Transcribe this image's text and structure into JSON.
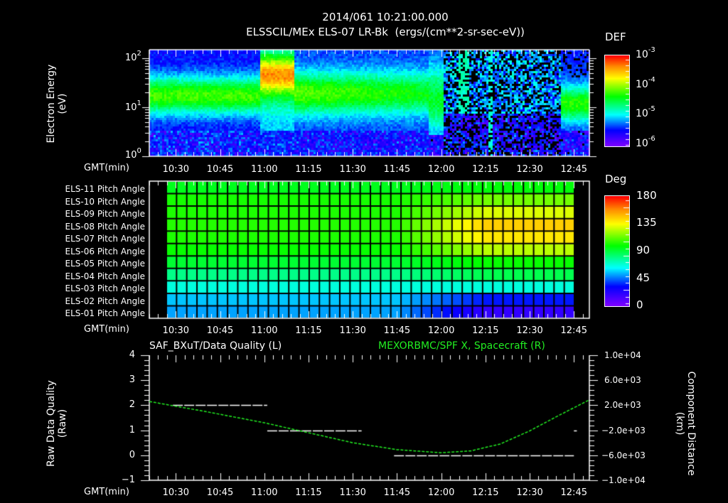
{
  "header": {
    "datetime": "2014/061 10:21:00.000",
    "subtitle": "ELSSCIL/MEx ELS-07 LR-Bk  (ergs/(cm**2-sr-sec-eV))"
  },
  "time_axis": {
    "label": "GMT(min)",
    "ticks": [
      "10:30",
      "10:45",
      "11:00",
      "11:15",
      "11:30",
      "11:45",
      "12:00",
      "12:15",
      "12:30",
      "12:45"
    ]
  },
  "chart_data": [
    {
      "type": "heatmap",
      "title": "ELSSCIL/MEx ELS-07 LR-Bk (ergs/(cm**2-sr-sec-eV))",
      "xlabel": "GMT(min)",
      "ylabel": "Electron Energy (eV)",
      "yscale": "log",
      "ylim": [
        1,
        150
      ],
      "y_ticks": [
        "10^0",
        "10^1",
        "10^2"
      ],
      "x_range": [
        "10:21",
        "12:50"
      ],
      "colorbar": {
        "label": "DEF",
        "scale": "log",
        "ticks": [
          "10^-6",
          "10^-5",
          "10^-4",
          "10^-3"
        ]
      },
      "features": [
        {
          "time": "10:21-10:58",
          "description": "green band ~15-40 eV, noisy purple below 4 eV"
        },
        {
          "time": "10:58-11:10",
          "description": "yellow/orange intensity peak ~50-100 eV"
        },
        {
          "time": "11:10-11:55",
          "description": "green band ~15-60 eV fading"
        },
        {
          "time": "11:55-12:00",
          "description": "cyan extension down to ~4 eV"
        },
        {
          "time": "12:00-12:40",
          "description": "sparse blue/purple with black gaps, vertical streaks"
        },
        {
          "time": "12:40-12:50",
          "description": "green block ~5-30 eV"
        }
      ]
    },
    {
      "type": "heatmap",
      "title": "Pitch Angle",
      "xlabel": "GMT(min)",
      "rows": [
        "ELS-11 Pitch Angle",
        "ELS-10 Pitch Angle",
        "ELS-09 Pitch Angle",
        "ELS-08 Pitch Angle",
        "ELS-07 Pitch Angle",
        "ELS-06 Pitch Angle",
        "ELS-05 Pitch Angle",
        "ELS-04 Pitch Angle",
        "ELS-03 Pitch Angle",
        "ELS-02 Pitch Angle",
        "ELS-01 Pitch Angle"
      ],
      "colorbar": {
        "label": "Deg",
        "ticks": [
          0,
          45,
          90,
          135,
          180
        ]
      },
      "start_values_deg": [
        95,
        102,
        103,
        104,
        103,
        100,
        92,
        80,
        68,
        56,
        52
      ],
      "end_values_deg": [
        98,
        115,
        130,
        145,
        140,
        125,
        100,
        88,
        68,
        35,
        20
      ],
      "transition_time": "12:10"
    },
    {
      "type": "line",
      "title_left": "SAF_BXuT/Data Quality (L)",
      "title_right": "MEXORBMC/SPF X, Spacecraft (R)",
      "xlabel": "GMT(min)",
      "ylabel_left": "Raw Data Quality (Raw)",
      "ylabel_right": "Component Distance (km)",
      "ylim_left": [
        -1,
        4
      ],
      "left_ticks": [
        "4",
        "3",
        "2",
        "1",
        "0",
        "-1"
      ],
      "ylim_right": [
        -10000,
        10000
      ],
      "right_ticks": [
        "1.0e+04",
        "6.0e+03",
        "2.0e+03",
        "-2.0e+03",
        "-6.0e+03",
        "-1.0e+04"
      ],
      "series": [
        {
          "name": "Data Quality",
          "axis": "left",
          "color": "#ffffff",
          "segments": [
            {
              "x": [
                "10:29",
                "11:01"
              ],
              "y": 2
            },
            {
              "x": [
                "11:01",
                "11:33"
              ],
              "y": 1
            },
            {
              "x": [
                "11:44",
                "12:45"
              ],
              "y": 0
            },
            {
              "x": [
                "12:45",
                "12:46"
              ],
              "y": 1
            }
          ]
        },
        {
          "name": "SPF X Spacecraft",
          "axis": "right",
          "color": "#22ee22",
          "x": [
            "10:21",
            "10:40",
            "11:00",
            "11:15",
            "11:30",
            "11:45",
            "12:00",
            "12:10",
            "12:20",
            "12:30",
            "12:40",
            "12:50"
          ],
          "y": [
            2600,
            1000,
            -800,
            -2400,
            -4000,
            -5100,
            -5600,
            -5300,
            -4200,
            -2100,
            400,
            2800
          ]
        }
      ]
    }
  ],
  "panel1": {
    "ylabel_line1": "Electron Energy",
    "ylabel_line2": "(eV)",
    "y_ticks": [
      {
        "base": "10",
        "exp": "2"
      },
      {
        "base": "10",
        "exp": "1"
      },
      {
        "base": "10",
        "exp": "0"
      }
    ],
    "colorbar_label": "DEF",
    "colorbar_ticks": [
      {
        "base": "10",
        "exp": "-3"
      },
      {
        "base": "10",
        "exp": "-4"
      },
      {
        "base": "10",
        "exp": "-5"
      },
      {
        "base": "10",
        "exp": "-6"
      }
    ]
  },
  "panel2": {
    "rows": [
      "ELS-11 Pitch Angle",
      "ELS-10 Pitch Angle",
      "ELS-09 Pitch Angle",
      "ELS-08 Pitch Angle",
      "ELS-07 Pitch Angle",
      "ELS-06 Pitch Angle",
      "ELS-05 Pitch Angle",
      "ELS-04 Pitch Angle",
      "ELS-03 Pitch Angle",
      "ELS-02 Pitch Angle",
      "ELS-01 Pitch Angle"
    ],
    "colorbar_label": "Deg",
    "colorbar_ticks": [
      "180",
      "135",
      "90",
      "45",
      "0"
    ]
  },
  "panel3": {
    "title_left": "SAF_BXuT/Data Quality (L)",
    "title_right": "MEXORBMC/SPF X, Spacecraft (R)",
    "ylabel_left_line1": "Raw Data Quality",
    "ylabel_left_line2": "(Raw)",
    "ylabel_right_line1": "Component Distance",
    "ylabel_right_line2": "(km)",
    "left_ticks": [
      "4",
      "3",
      "2",
      "1",
      "0",
      "−1"
    ],
    "right_ticks": [
      "1.0e+04",
      "6.0e+03",
      "2.0e+03",
      "−2.0e+03",
      "−6.0e+03",
      "−1.0e+04"
    ],
    "right_title_color": "#22ee22"
  }
}
